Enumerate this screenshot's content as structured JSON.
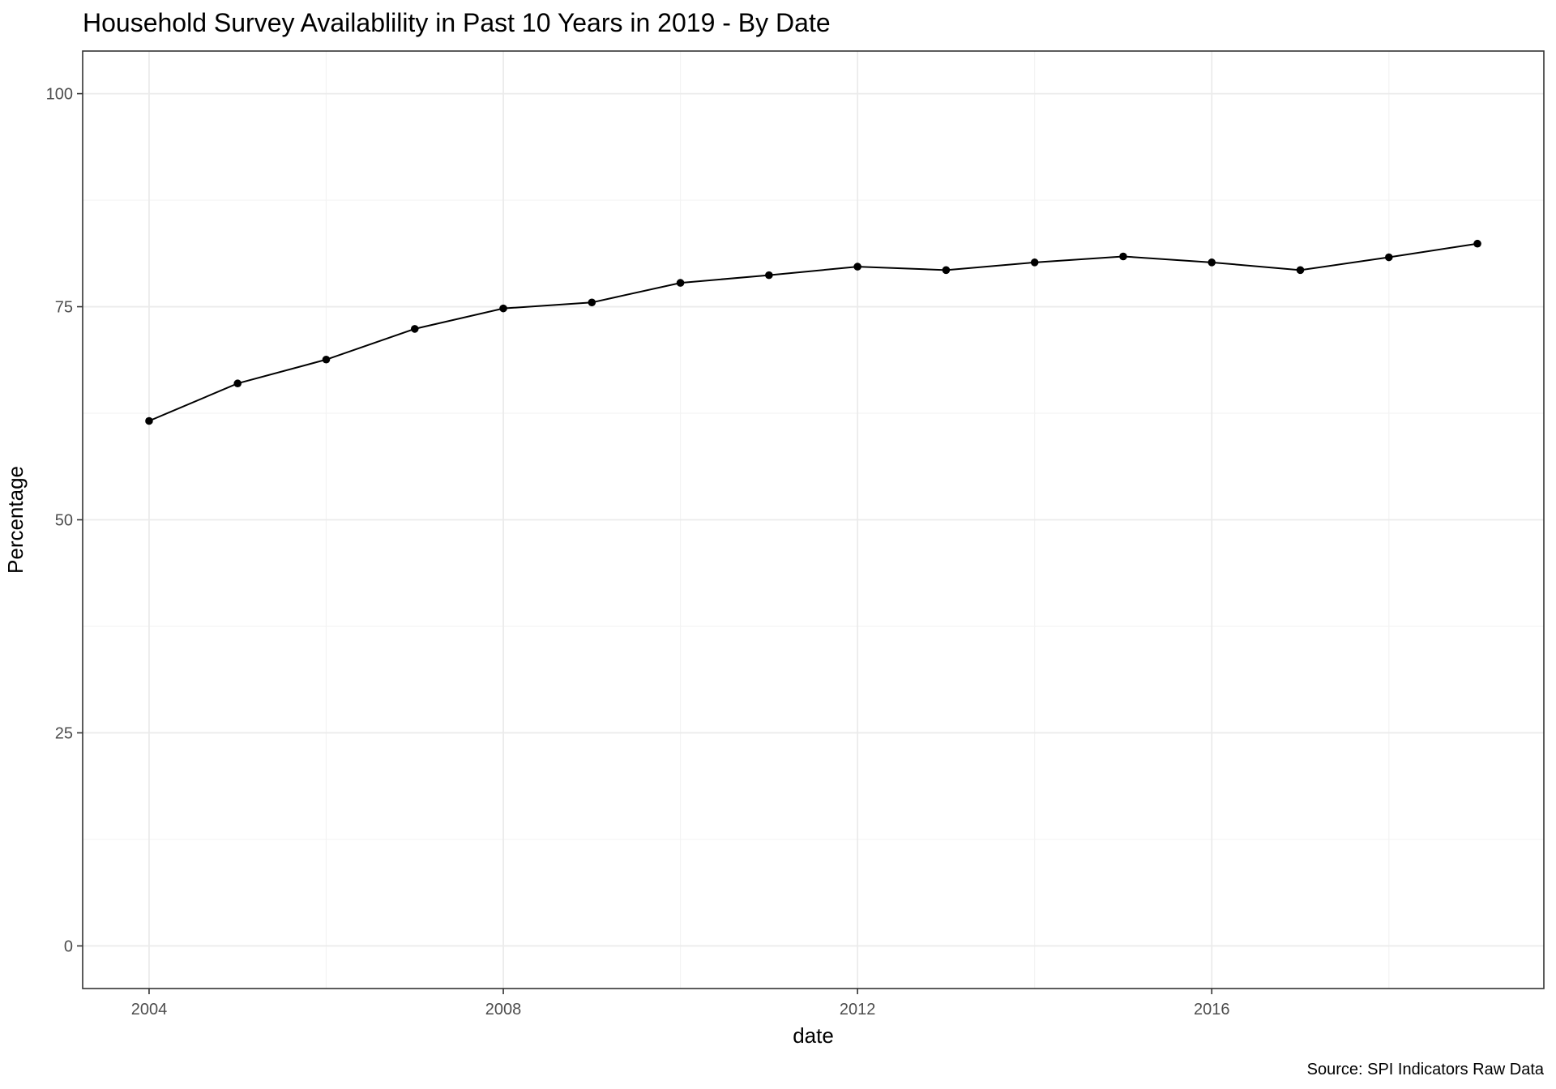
{
  "chart_data": {
    "type": "line",
    "title": "Household Survey Availablility in Past 10 Years in 2019 - By Date",
    "xlabel": "date",
    "ylabel": "Percentage",
    "caption": "Source: SPI Indicators Raw Data",
    "xlim": [
      2003.25,
      2019.75
    ],
    "ylim": [
      -5,
      105
    ],
    "x_ticks": [
      2004,
      2008,
      2012,
      2016
    ],
    "x_tick_labels": [
      "2004",
      "2008",
      "2012",
      "2016"
    ],
    "y_ticks": [
      0,
      25,
      50,
      75,
      100
    ],
    "y_tick_labels": [
      "0",
      "25",
      "50",
      "75",
      "100"
    ],
    "x_minor": [
      2006,
      2010,
      2014,
      2018
    ],
    "y_minor": [
      12.5,
      37.5,
      62.5,
      87.5
    ],
    "grid": true,
    "legend": "none",
    "series": [
      {
        "x": [
          2004,
          2005,
          2006,
          2007,
          2008,
          2009,
          2010,
          2011,
          2012,
          2013,
          2014,
          2015,
          2016,
          2017,
          2018,
          2019
        ],
        "y": [
          61.6,
          66.0,
          68.8,
          72.4,
          74.8,
          75.5,
          77.8,
          78.7,
          79.7,
          79.3,
          80.2,
          80.9,
          80.2,
          79.3,
          80.8,
          82.4
        ]
      }
    ],
    "colors": {
      "line": "#000000",
      "point": "#000000",
      "grid": "#ebebeb",
      "border": "#333333"
    }
  }
}
